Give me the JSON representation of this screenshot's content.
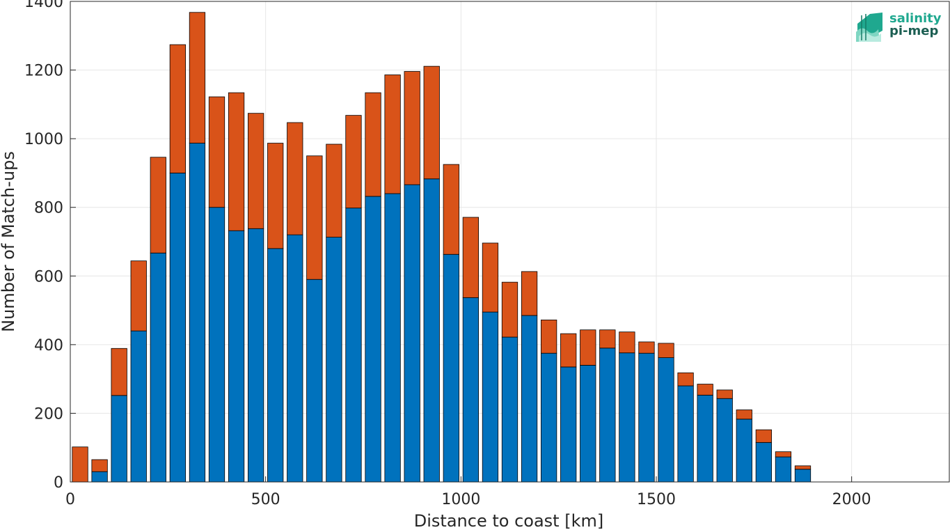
{
  "chart_data": {
    "type": "bar",
    "stacked": true,
    "xlabel": "Distance to coast [km]",
    "ylabel": "Number of Match-ups",
    "xlim": [
      0,
      2250
    ],
    "ylim": [
      0,
      1400
    ],
    "xticks": [
      0,
      500,
      1000,
      1500,
      2000
    ],
    "yticks": [
      0,
      200,
      400,
      600,
      800,
      1000,
      1200,
      1400
    ],
    "grid": true,
    "bin_width": 50,
    "x": [
      25,
      75,
      125,
      175,
      225,
      275,
      325,
      375,
      425,
      475,
      525,
      575,
      625,
      675,
      725,
      775,
      825,
      875,
      925,
      975,
      1025,
      1075,
      1125,
      1175,
      1225,
      1275,
      1325,
      1375,
      1425,
      1475,
      1525,
      1575,
      1625,
      1675,
      1725,
      1775,
      1825,
      1875
    ],
    "series": [
      {
        "color": "#0072bd",
        "values": [
          0,
          30,
          252,
          440,
          667,
          900,
          987,
          800,
          732,
          738,
          680,
          720,
          590,
          713,
          798,
          832,
          840,
          866,
          883,
          663,
          537,
          495,
          422,
          485,
          375,
          335,
          340,
          390,
          376,
          375,
          362,
          280,
          253,
          243,
          183,
          115,
          73,
          37
        ]
      },
      {
        "color": "#d95319",
        "values": [
          102,
          35,
          137,
          204,
          279,
          374,
          381,
          322,
          402,
          336,
          307,
          327,
          360,
          271,
          270,
          302,
          346,
          330,
          328,
          262,
          234,
          201,
          160,
          128,
          97,
          97,
          103,
          53,
          61,
          33,
          42,
          38,
          32,
          25,
          27,
          37,
          15,
          10
        ]
      }
    ]
  },
  "logo": {
    "line1": "salinity",
    "line2": "pi-mep",
    "color_light": "#1fa88f",
    "color_dark": "#1b5e52"
  }
}
